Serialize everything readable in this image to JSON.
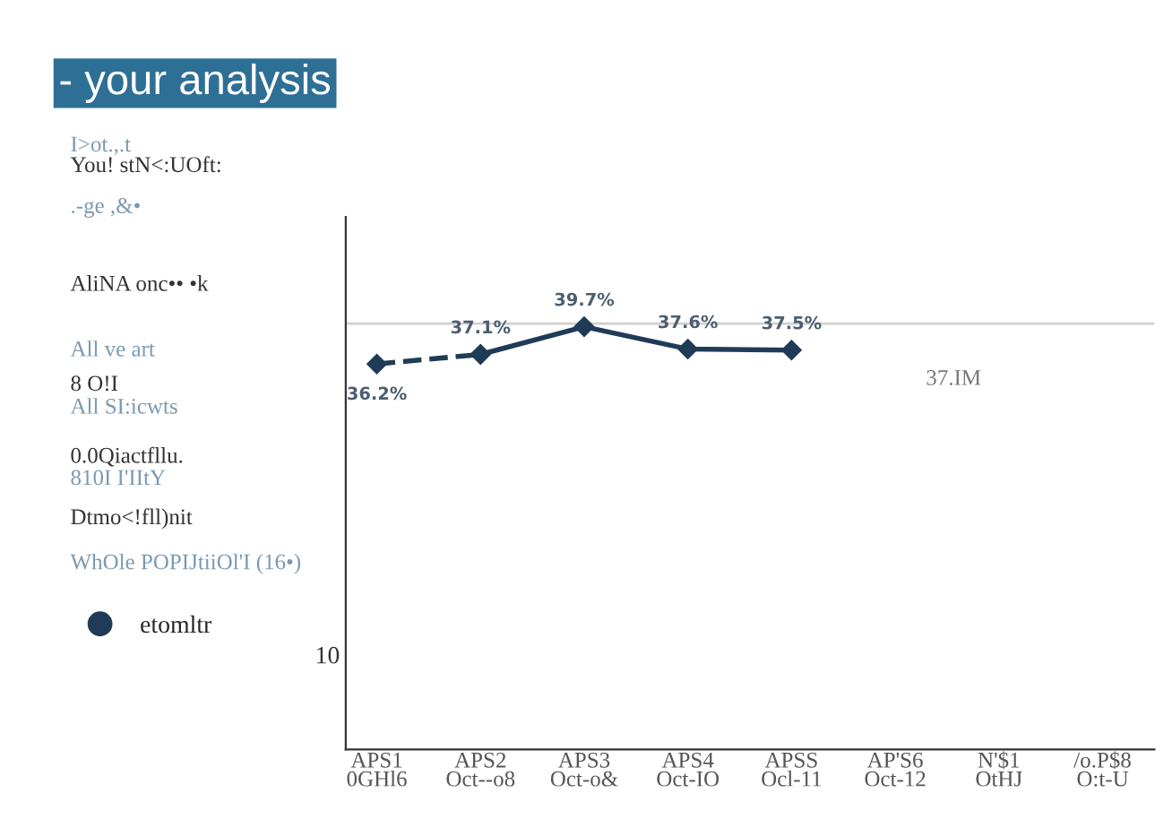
{
  "chart_data": {
    "type": "line",
    "title": "- your analysis",
    "categories": [
      "APS1\n0GHl6",
      "APS2\nOct--o8",
      "APS3\nOct-o&",
      "APS4\nOct-IO",
      "APSS\nOcl-11",
      "AP'S6\nOct-12",
      "N'$1\nOtHJ",
      "/o.P$8\nO:t-U"
    ],
    "series": [
      {
        "color": "#1f3b57",
        "line_style": "dashed",
        "marker": "diamond",
        "values": [
          36.2,
          37.1,
          null,
          null,
          null,
          null,
          null,
          null
        ],
        "value_labels": [
          "36.2%",
          null,
          null,
          null,
          null,
          null,
          null,
          null
        ]
      },
      {
        "name": "etomltr",
        "color": "#1f3b57",
        "line_style": "solid",
        "marker": "diamond",
        "values": [
          null,
          37.1,
          39.7,
          37.6,
          37.5,
          null,
          null,
          null
        ],
        "value_labels": [
          null,
          "37.1%",
          "39.7%",
          "37.6%",
          "37.5%",
          null,
          null,
          null
        ]
      }
    ],
    "ylim": [
      0,
      50
    ],
    "data_labels": true,
    "ref_lines": [
      {
        "axis": "y",
        "value": 40,
        "color": "#d0d0d0"
      }
    ],
    "annotations": [
      "37.IM",
      "10",
      "I>ot.,.t",
      "You! stN<:UOft:",
      ".-ge ,&•",
      "AliNA onc•• •k",
      "All ve art",
      "8 O!I",
      "All SI:icwts",
      "0.0Qiactfllu.",
      "810I I'IItY",
      "Dtmo<!fll)nit",
      "WhOle POPIJtiiOl'I (16•)"
    ],
    "legend": "left",
    "grid": false
  }
}
